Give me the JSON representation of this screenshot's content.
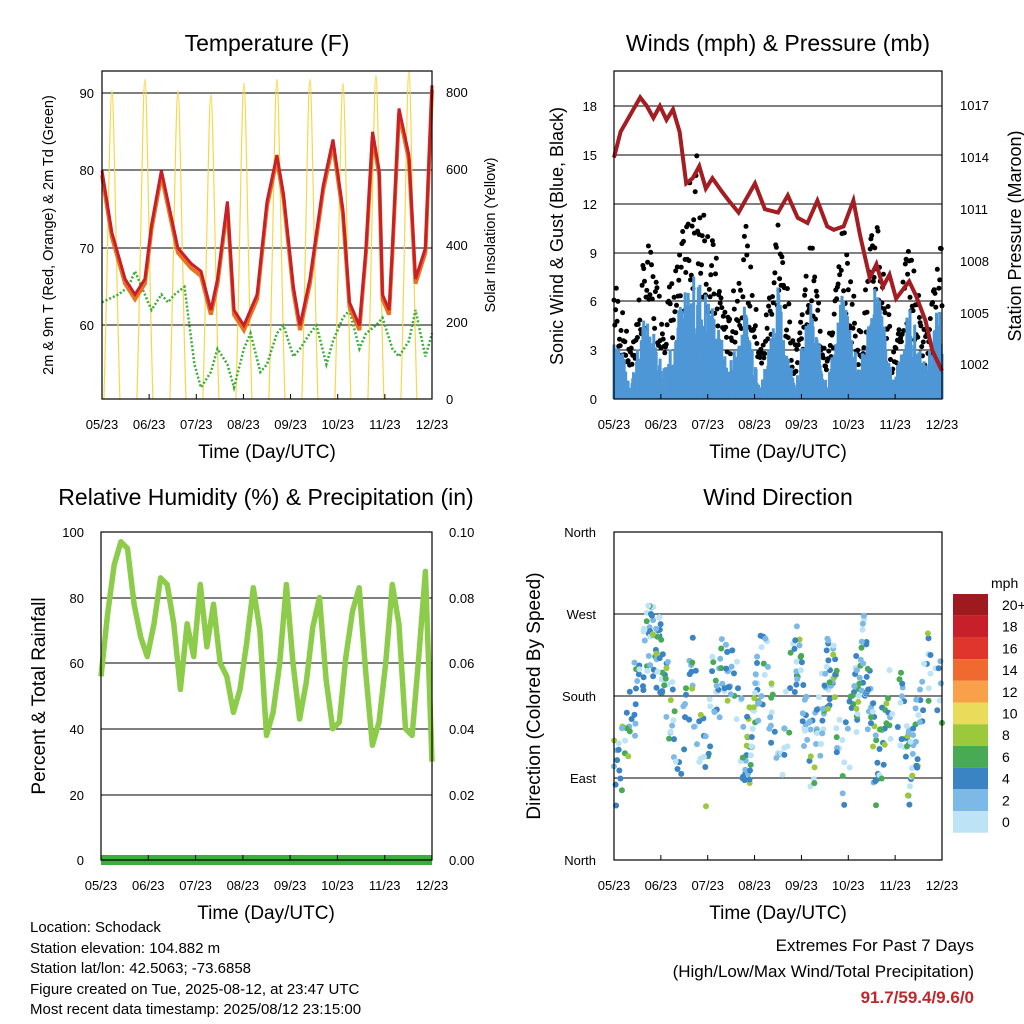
{
  "colors": {
    "temp_2m": "#e8731f",
    "temp_9m": "#c8202a",
    "dewpoint": "#3aad3a",
    "insolation": "#f7d74a",
    "gust": "#000000",
    "wind": "#4e97d6",
    "pressure": "#a31d22",
    "humidity": "#8ccc4a",
    "precip": "#3aad3a",
    "extremes_text": "#c0272d"
  },
  "chart_data": [
    {
      "id": "temperature",
      "type": "line",
      "title": "Temperature (F)",
      "xlabel": "Time (Day/UTC)",
      "ylabel": "2m & 9m T (Red, Orange) & 2m Td (Green)",
      "y2label": "Solar Insolation (Yellow)",
      "x_ticks": [
        "05/23",
        "06/23",
        "07/23",
        "08/23",
        "09/23",
        "10/23",
        "11/23",
        "12/23"
      ],
      "y_ticks": [
        60,
        70,
        80,
        90
      ],
      "y2_ticks": [
        0,
        200,
        400,
        600,
        800
      ],
      "ylim": [
        50,
        93
      ],
      "y2lim": [
        0,
        853
      ],
      "grid": true,
      "series": [
        {
          "role": "temperature_2m_9m",
          "x": [
            0,
            0.3,
            0.7,
            1.0,
            1.3,
            1.5,
            1.8,
            2.0,
            2.3,
            2.7,
            3.0,
            3.3,
            3.5,
            3.8,
            4.0,
            4.3,
            4.7,
            5.0,
            5.3,
            5.5,
            5.8,
            6.0,
            6.3,
            6.7,
            7.0,
            7.3,
            7.5,
            7.8,
            8.0,
            8.2,
            8.4,
            8.5,
            8.7,
            8.8,
            9.0,
            9.3,
            9.5,
            9.8,
            10.0
          ],
          "y": [
            80,
            72,
            66,
            64,
            66,
            73,
            80,
            76,
            70,
            68,
            67,
            62,
            66,
            76,
            62,
            60,
            64,
            76,
            82,
            77,
            65,
            60,
            66,
            78,
            84,
            75,
            63,
            60,
            70,
            85,
            80,
            64,
            62,
            70,
            88,
            82,
            66,
            70,
            91
          ]
        },
        {
          "role": "dewpoint",
          "x": [
            0,
            0.5,
            0.8,
            1.0,
            1.3,
            1.5,
            1.8,
            2.0,
            2.2,
            2.5,
            2.8,
            3.0,
            3.3,
            3.5,
            3.8,
            4.0,
            4.3,
            4.5,
            4.8,
            5.0,
            5.3,
            5.5,
            5.8,
            6.0,
            6.3,
            6.5,
            6.8,
            7.0,
            7.3,
            7.5,
            7.8,
            8.0,
            8.3,
            8.5,
            8.8,
            9.0,
            9.3,
            9.5,
            9.8,
            10.0
          ],
          "y": [
            63,
            64,
            65,
            67,
            64,
            62,
            64,
            63,
            64,
            65,
            55,
            52,
            54,
            57,
            55,
            52,
            57,
            59,
            54,
            55,
            59,
            60,
            56,
            57,
            59,
            60,
            55,
            58,
            61,
            62,
            57,
            59,
            60,
            61,
            57,
            56,
            58,
            62,
            56,
            59
          ]
        },
        {
          "role": "solar_insolation",
          "peaks": [
            800,
            830,
            800,
            790,
            820,
            830,
            830,
            820,
            840,
            850
          ]
        }
      ]
    },
    {
      "id": "winds",
      "type": "scatter",
      "title": "Winds (mph) & Pressure (mb)",
      "xlabel": "Time (Day/UTC)",
      "ylabel": "Sonic Wind & Gust (Blue, Black)",
      "y2label": "Station Pressure (Maroon)",
      "x_ticks": [
        "05/23",
        "06/23",
        "07/23",
        "08/23",
        "09/23",
        "10/23",
        "11/23",
        "12/23"
      ],
      "y_ticks": [
        0,
        3,
        6,
        9,
        12,
        15,
        18
      ],
      "y2_ticks": [
        1002,
        1005,
        1008,
        1011,
        1014,
        1017
      ],
      "ylim": [
        0,
        19.8
      ],
      "y2lim": [
        1000.8,
        1018.8
      ],
      "grid": true,
      "series": [
        {
          "role": "pressure",
          "x": [
            0,
            0.2,
            0.5,
            0.8,
            1.0,
            1.2,
            1.4,
            1.6,
            1.8,
            2.0,
            2.2,
            2.4,
            2.6,
            2.8,
            3.0,
            3.3,
            3.5,
            3.8,
            4.0,
            4.3,
            4.6,
            5.0,
            5.3,
            5.6,
            5.9,
            6.2,
            6.5,
            6.7,
            7.0,
            7.3,
            7.5,
            7.8,
            8.0,
            8.2,
            8.4,
            8.6,
            8.8,
            9.0,
            9.2,
            9.5,
            9.7,
            10.0
          ],
          "y": [
            1014,
            1015.5,
            1016.5,
            1017.5,
            1017.0,
            1016.3,
            1017.0,
            1016.2,
            1016.8,
            1015.5,
            1012.5,
            1012.8,
            1013.5,
            1012.2,
            1012.8,
            1012.0,
            1011.5,
            1010.8,
            1011.5,
            1012.5,
            1011.0,
            1010.8,
            1011.8,
            1010.5,
            1010.2,
            1011.5,
            1010.0,
            1009.8,
            1010.0,
            1011.5,
            1009.5,
            1007.0,
            1007.8,
            1006.5,
            1007.2,
            1005.8,
            1006.3,
            1006.8,
            1006.0,
            1004.5,
            1002.8,
            1001.6
          ]
        },
        {
          "role": "gust_envelope",
          "x": [
            0,
            0.5,
            1.0,
            1.5,
            2.0,
            2.5,
            3.0,
            3.5,
            4.0,
            4.5,
            5.0,
            5.5,
            6.0,
            6.5,
            7.0,
            7.5,
            8.0,
            8.5,
            9.0,
            9.5,
            10.0
          ],
          "y": [
            8,
            3,
            10,
            6,
            9,
            16,
            10,
            5,
            11,
            3,
            12,
            3,
            10,
            3,
            11,
            4,
            13,
            3,
            10,
            4,
            10
          ]
        },
        {
          "role": "wind_envelope",
          "x": [
            0,
            0.5,
            1.0,
            1.5,
            2.0,
            2.5,
            3.0,
            3.5,
            4.0,
            4.5,
            5.0,
            5.5,
            6.0,
            6.5,
            7.0,
            7.5,
            8.0,
            8.5,
            9.0,
            9.5,
            10.0
          ],
          "y": [
            5,
            1,
            6,
            2,
            6,
            8,
            6,
            2,
            6,
            1,
            7,
            1,
            6,
            1,
            7,
            2,
            8,
            1,
            6,
            2,
            7
          ]
        }
      ]
    },
    {
      "id": "humidity",
      "type": "line",
      "title": "Relative Humidity (%) & Precipitation (in)",
      "xlabel": "Time (Day/UTC)",
      "ylabel": "Percent & Total Rainfall",
      "x_ticks": [
        "05/23",
        "06/23",
        "07/23",
        "08/23",
        "09/23",
        "10/23",
        "11/23",
        "12/23"
      ],
      "y_ticks": [
        0,
        20,
        40,
        60,
        80,
        100
      ],
      "y2_ticks": [
        "0.00",
        "0.02",
        "0.04",
        "0.06",
        "0.08",
        "0.10"
      ],
      "ylim": [
        0,
        100
      ],
      "y2lim": [
        0,
        0.1
      ],
      "grid": true,
      "series": [
        {
          "role": "relative_humidity",
          "x": [
            0,
            0.2,
            0.4,
            0.6,
            0.8,
            1.0,
            1.2,
            1.4,
            1.6,
            1.8,
            2.0,
            2.2,
            2.4,
            2.6,
            2.8,
            3.0,
            3.2,
            3.4,
            3.6,
            3.8,
            4.0,
            4.2,
            4.4,
            4.6,
            4.8,
            5.0,
            5.2,
            5.4,
            5.6,
            5.8,
            6.0,
            6.2,
            6.4,
            6.6,
            6.8,
            7.0,
            7.2,
            7.4,
            7.6,
            7.8,
            8.0,
            8.2,
            8.4,
            8.6,
            8.8,
            9.0,
            9.2,
            9.4,
            9.6,
            9.8,
            10.0
          ],
          "y": [
            56,
            75,
            90,
            97,
            95,
            78,
            68,
            62,
            72,
            86,
            84,
            72,
            52,
            72,
            62,
            84,
            65,
            78,
            60,
            56,
            45,
            52,
            66,
            83,
            70,
            38,
            45,
            60,
            84,
            60,
            43,
            54,
            71,
            80,
            55,
            40,
            42,
            62,
            76,
            83,
            57,
            35,
            42,
            60,
            84,
            72,
            40,
            38,
            62,
            88,
            30
          ]
        },
        {
          "role": "total_precipitation",
          "x": [
            0,
            10
          ],
          "y": [
            0,
            0
          ]
        }
      ]
    },
    {
      "id": "wind_direction",
      "type": "scatter",
      "title": "Wind Direction",
      "xlabel": "Time (Day/UTC)",
      "ylabel": "Direction (Colored By Speed)",
      "x_ticks": [
        "05/23",
        "06/23",
        "07/23",
        "08/23",
        "09/23",
        "10/23",
        "11/23",
        "12/23"
      ],
      "y_ticks": [
        "North",
        "East",
        "South",
        "West",
        "North"
      ],
      "ylim": [
        0,
        360
      ],
      "grid": true,
      "legend_title": "mph",
      "legend_labels": [
        "20+",
        "18",
        "16",
        "14",
        "12",
        "10",
        "8",
        "6",
        "4",
        "2",
        "0"
      ],
      "legend_colors": [
        "#9e1a1e",
        "#c8202a",
        "#e0352a",
        "#f06a30",
        "#f9a04b",
        "#e8dc5a",
        "#9cc93c",
        "#49aa56",
        "#3a84c4",
        "#7db9e6",
        "#bde3f6"
      ],
      "legend_placement": "right",
      "series": [
        {
          "role": "direction_cluster_centers",
          "x": [
            0.2,
            0.5,
            1.0,
            1.5,
            2.0,
            2.4,
            2.8,
            3.0,
            3.6,
            4.0,
            4.6,
            5.0,
            5.6,
            6.0,
            6.6,
            7.0,
            7.6,
            8.0,
            8.6,
            9.0,
            9.6,
            10.0
          ],
          "y": [
            100,
            150,
            250,
            220,
            100,
            200,
            100,
            190,
            220,
            100,
            230,
            100,
            230,
            100,
            220,
            100,
            230,
            100,
            200,
            100,
            210,
            180
          ]
        }
      ]
    }
  ],
  "info": {
    "location": "Location: Schodack",
    "elevation": "Station elevation: 104.882 m",
    "latlon": "Station lat/lon: 42.5063; -73.6858",
    "created": "Figure created on Tue, 2025-08-12, at 23:47 UTC",
    "recent": "Most recent data timestamp: 2025/08/12 23:15:00"
  },
  "extremes": {
    "title": "Extremes For Past 7 Days",
    "subtitle": "(High/Low/Max Wind/Total Precipitation)",
    "values": "91.7/59.4/9.6/0"
  }
}
